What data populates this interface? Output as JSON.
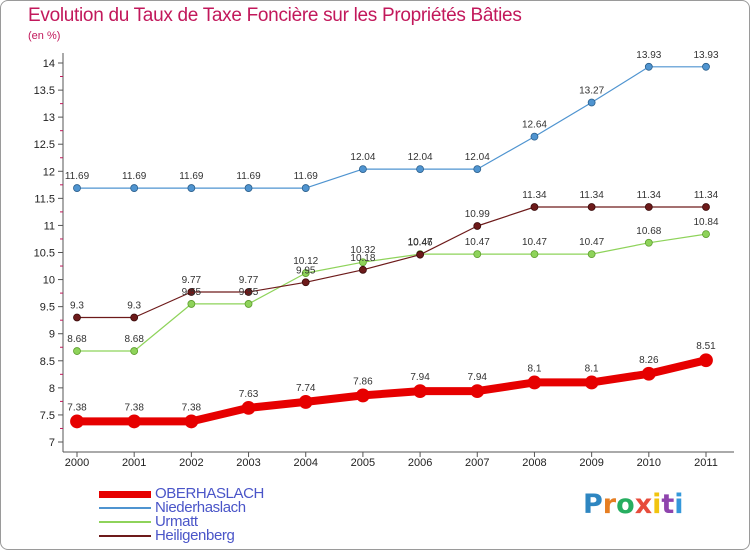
{
  "title": "Evolution du Taux de Taxe Foncière sur les Propriétés Bâties",
  "subtitle": "(en %)",
  "logo": {
    "text": "Proxiti",
    "colors": [
      "#2e86c1",
      "#e67e22",
      "#27ae60",
      "#e74c3c",
      "#f1c40f",
      "#8e44ad",
      "#3498db"
    ]
  },
  "chart_data": {
    "type": "line",
    "title": "Evolution du Taux de Taxe Foncière sur les Propriétés Bâties",
    "ylabel": "(en %)",
    "xlabel": "",
    "x": [
      "2000",
      "2001",
      "2002",
      "2003",
      "2004",
      "2005",
      "2006",
      "2007",
      "2008",
      "2009",
      "2010",
      "2011"
    ],
    "ylim": [
      7,
      14
    ],
    "yticks": [
      "7",
      "7.5",
      "8",
      "8.5",
      "9",
      "9.5",
      "10",
      "10.5",
      "11",
      "11.5",
      "12",
      "12.5",
      "13",
      "13.5",
      "14"
    ],
    "grid": false,
    "legend_position": "bottom-left",
    "series": [
      {
        "name": "OBERHASLACH",
        "color": "#e60000",
        "values": [
          7.38,
          7.38,
          7.38,
          7.63,
          7.74,
          7.86,
          7.94,
          7.94,
          8.1,
          8.1,
          8.26,
          8.51
        ]
      },
      {
        "name": "Niederhaslach",
        "color": "#4f94d0",
        "values": [
          11.69,
          11.69,
          11.69,
          11.69,
          11.69,
          12.04,
          12.04,
          12.04,
          12.64,
          13.27,
          13.93,
          13.93
        ]
      },
      {
        "name": "Urmatt",
        "color": "#8ed35a",
        "values": [
          8.68,
          8.68,
          9.55,
          9.55,
          10.12,
          10.32,
          10.47,
          10.47,
          10.47,
          10.47,
          10.68,
          10.84
        ]
      },
      {
        "name": "Heiligenberg",
        "color": "#6d1a1a",
        "values": [
          9.3,
          9.3,
          9.77,
          9.77,
          9.95,
          10.18,
          10.46,
          10.99,
          11.34,
          11.34,
          11.34,
          11.34
        ]
      }
    ],
    "data_labels": {
      "OBERHASLACH": [
        "7.38",
        "7.38",
        "7.38",
        "7.63",
        "7.74",
        "7.86",
        "7.94",
        "7.94",
        "8.1",
        "8.1",
        "8.26",
        "8.51"
      ],
      "Niederhaslach": [
        "11.69",
        "11.69",
        "11.69",
        "11.69",
        "11.69",
        "12.04",
        "12.04",
        "12.04",
        "12.64",
        "13.27",
        "13.93",
        "13.93"
      ],
      "Urmatt": [
        "8.68",
        "8.68",
        "9.55",
        "9.55",
        "10.12",
        "10.32",
        "10.47",
        "10.47",
        "10.47",
        "10.47",
        "10.68",
        "10.84"
      ],
      "Heiligenberg": [
        "9.3",
        "9.3",
        "9.77",
        "9.77",
        "9.95",
        "10.18",
        "10.46",
        "10.99",
        "11.34",
        "11.34",
        "11.34",
        "11.34"
      ]
    }
  }
}
